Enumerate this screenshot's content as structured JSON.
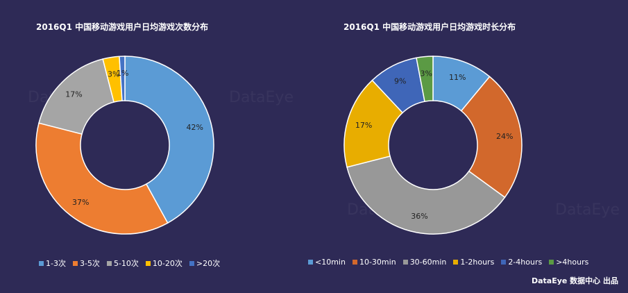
{
  "chart_data": [
    {
      "type": "pie",
      "title": "2016Q1 中国移动游戏用户日均游戏次数分布",
      "categories": [
        "1-3次",
        "3-5次",
        "5-10次",
        "10-20次",
        ">20次"
      ],
      "values": [
        42,
        37,
        17,
        3,
        1
      ],
      "value_labels": [
        "42%",
        "37%",
        "17%",
        "3%",
        "1%"
      ],
      "colors": [
        "#5b9bd5",
        "#ed7d31",
        "#a5a5a5",
        "#ffc000",
        "#4472c4"
      ],
      "legend": "bottom"
    },
    {
      "type": "pie",
      "title": "2016Q1 中国移动游戏用户日均游戏时长分布",
      "categories": [
        "<10min",
        "10-30min",
        "30-60min",
        "1-2hours",
        "2-4hours",
        ">4hours"
      ],
      "values": [
        11,
        24,
        36,
        17,
        9,
        3
      ],
      "value_labels": [
        "11%",
        "24%",
        "36%",
        "17%",
        "9%",
        "3%"
      ],
      "colors": [
        "#5b9bd5",
        "#d2682c",
        "#989898",
        "#e8ad00",
        "#3f66b8",
        "#5b9a44"
      ],
      "legend": "bottom"
    }
  ],
  "watermark_text": "DataEye",
  "footer": "DataEye 数据中心 出品"
}
